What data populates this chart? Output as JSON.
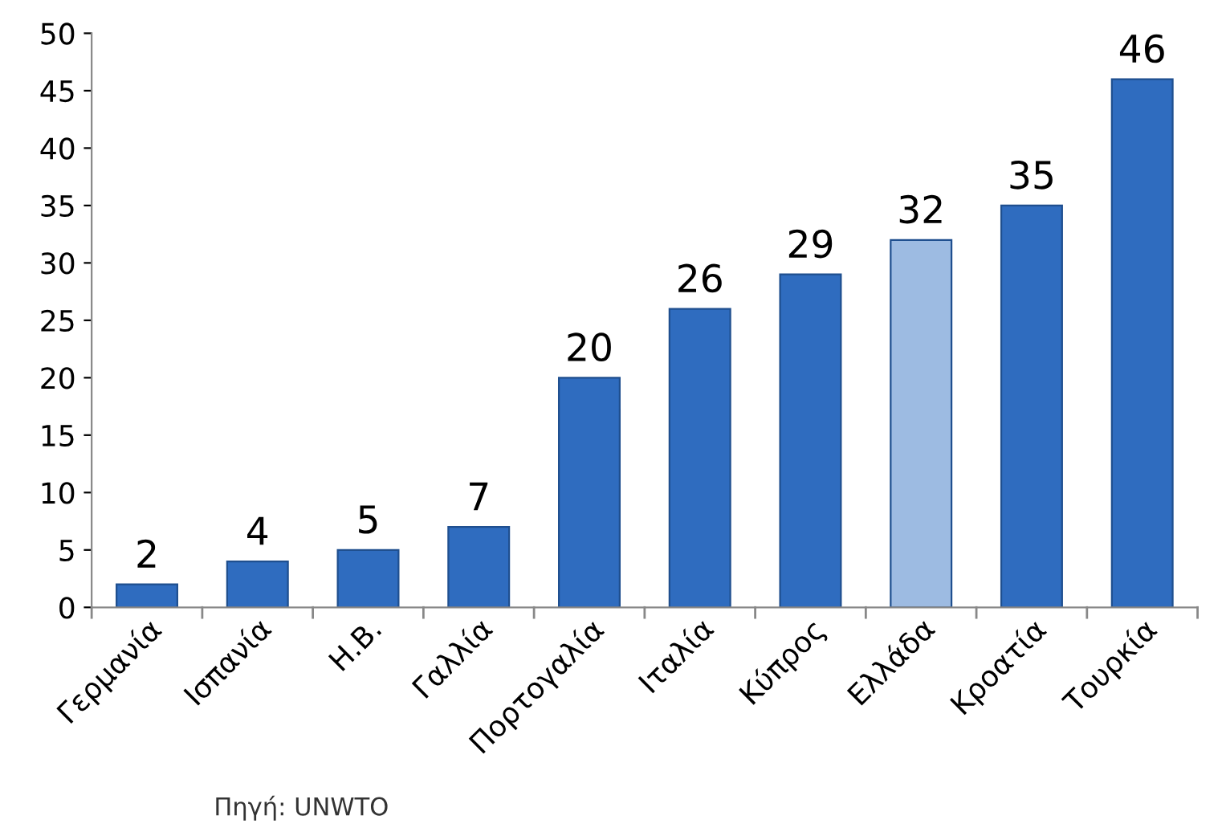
{
  "chart_data": {
    "type": "bar",
    "categories": [
      "Γερμανία",
      "Ισπανία",
      "Η.Β.",
      "Γαλλία",
      "Πορτογαλία",
      "Ιταλία",
      "Κύπρος",
      "Ελλάδα",
      "Κροατία",
      "Τουρκία"
    ],
    "values": [
      2,
      4,
      5,
      7,
      20,
      26,
      29,
      32,
      35,
      46
    ],
    "colors": [
      "#2f6cbf",
      "#2f6cbf",
      "#2f6cbf",
      "#2f6cbf",
      "#2f6cbf",
      "#2f6cbf",
      "#2f6cbf",
      "#9dbbe2",
      "#2f6cbf",
      "#2f6cbf"
    ],
    "ylim": [
      0,
      50
    ],
    "yticks": [
      0,
      5,
      10,
      15,
      20,
      25,
      30,
      35,
      40,
      45,
      50
    ],
    "data_labels": true,
    "grid": false,
    "legend": false,
    "annotations": [
      "Πηγή: UNWTO"
    ]
  }
}
